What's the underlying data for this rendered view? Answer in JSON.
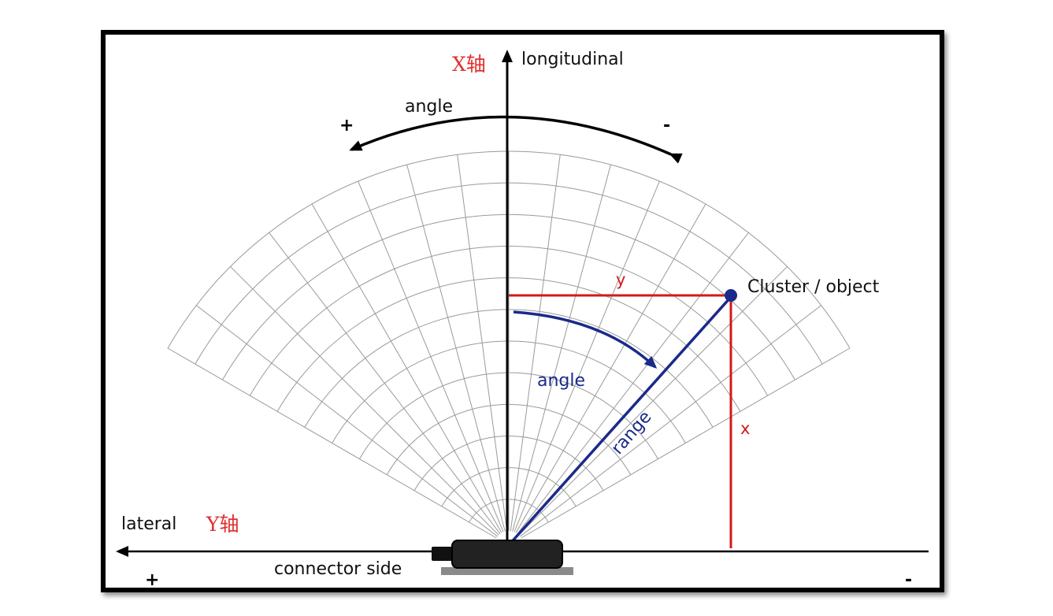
{
  "labels": {
    "x_axis_cn": "X轴",
    "longitudinal": "longitudinal",
    "angle_top": "angle",
    "plus_top": "+",
    "minus_top": "-",
    "y_small": "y",
    "cluster": "Cluster / object",
    "angle_inner": "angle",
    "range": "range",
    "x_small": "x",
    "lateral": "lateral",
    "y_axis_cn": "Y轴",
    "connector": "connector side",
    "plus_bottom": "+",
    "minus_bottom": "-"
  },
  "colors": {
    "axis": "#000000",
    "grid": "#9a9a9a",
    "red": "#d11a1a",
    "blue": "#1a2a8a",
    "label_red": "#e03030"
  },
  "fan": {
    "half_angle_deg": 60,
    "angle_step_deg": 7.5,
    "ring_count": 12
  }
}
